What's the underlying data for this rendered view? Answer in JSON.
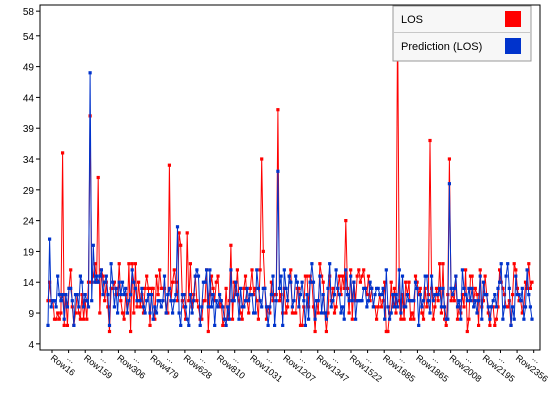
{
  "chart_data": {
    "type": "line",
    "title": "",
    "xlabel": "",
    "ylabel": "",
    "ylim": [
      3,
      59
    ],
    "grid": false,
    "legend_placement": "top-right",
    "y_ticks": [
      "4",
      "9",
      "14",
      "19",
      "24",
      "29",
      "34",
      "39",
      "44",
      "49",
      "54",
      "58"
    ],
    "x_tick_labels": [
      "Row16",
      "Row159",
      "Row306",
      "Row479",
      "Row628",
      "Row810",
      "Row1031",
      "Row1207",
      "Row1347",
      "Row1522",
      "Row1685",
      "Row1865",
      "Row2008",
      "Row2195",
      "Row2356"
    ],
    "x_tick_minor_label": "...",
    "n_points": 300,
    "legend": [
      {
        "label": "LOS",
        "color": "#ff0000"
      },
      {
        "label": "Prediction (LOS)",
        "color": "#0033cc"
      }
    ],
    "series": [
      {
        "name": "LOS",
        "color": "#ff0000"
      },
      {
        "name": "Prediction (LOS)",
        "color": "#0033cc"
      }
    ],
    "notable_peaks": [
      {
        "series": "LOS",
        "index": 9,
        "value": 35
      },
      {
        "series": "LOS",
        "index": 26,
        "value": 41
      },
      {
        "series": "Prediction (LOS)",
        "index": 26,
        "value": 48
      },
      {
        "series": "LOS",
        "index": 31,
        "value": 31
      },
      {
        "series": "LOS",
        "index": 75,
        "value": 33
      },
      {
        "series": "LOS",
        "index": 132,
        "value": 34
      },
      {
        "series": "LOS",
        "index": 142,
        "value": 42
      },
      {
        "series": "Prediction (LOS)",
        "index": 142,
        "value": 32
      },
      {
        "series": "LOS",
        "index": 216,
        "value": 58
      },
      {
        "series": "LOS",
        "index": 236,
        "value": 37
      },
      {
        "series": "LOS",
        "index": 248,
        "value": 34
      },
      {
        "series": "Prediction (LOS)",
        "index": 248,
        "value": 30
      }
    ]
  }
}
